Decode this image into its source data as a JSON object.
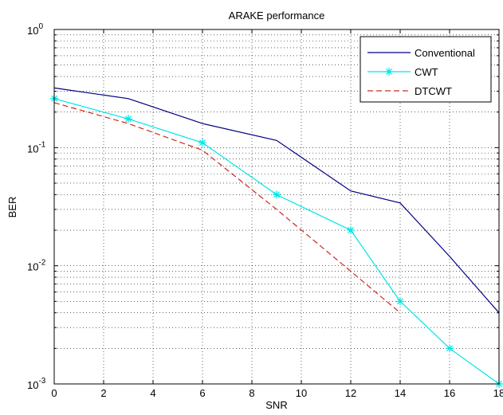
{
  "chart_data": {
    "type": "line",
    "title": "ARAKE performance",
    "xlabel": "SNR",
    "ylabel": "BER",
    "xlim": [
      0,
      18
    ],
    "ylim": [
      0.001,
      1
    ],
    "yscale": "log",
    "grid": true,
    "legend_position": "top-right",
    "x_ticks": [
      "0",
      "2",
      "4",
      "6",
      "8",
      "10",
      "12",
      "14",
      "16",
      "18"
    ],
    "y_ticks": [
      {
        "base": "10",
        "exp": "0",
        "value": 1
      },
      {
        "base": "10",
        "exp": "-1",
        "value": 0.1
      },
      {
        "base": "10",
        "exp": "-2",
        "value": 0.01
      },
      {
        "base": "10",
        "exp": "-3",
        "value": 0.001
      }
    ],
    "series": [
      {
        "name": "Conventional",
        "color": "#000080",
        "style": "solid",
        "marker": "none",
        "x": [
          0,
          3,
          6,
          9,
          12,
          14,
          16,
          18
        ],
        "y": [
          0.32,
          0.26,
          0.16,
          0.115,
          0.043,
          0.034,
          0.012,
          0.004
        ]
      },
      {
        "name": "CWT",
        "color": "#00e5e5",
        "style": "solid",
        "marker": "star",
        "x": [
          0,
          3,
          6,
          9,
          12,
          14,
          16,
          18
        ],
        "y": [
          0.26,
          0.175,
          0.11,
          0.04,
          0.02,
          0.005,
          0.002,
          0.001
        ]
      },
      {
        "name": "DTCWT",
        "color": "#cc2a1f",
        "style": "dashed",
        "marker": "none",
        "x": [
          0,
          3,
          6,
          9,
          12,
          14
        ],
        "y": [
          0.24,
          0.16,
          0.095,
          0.03,
          0.009,
          0.004
        ]
      }
    ]
  }
}
